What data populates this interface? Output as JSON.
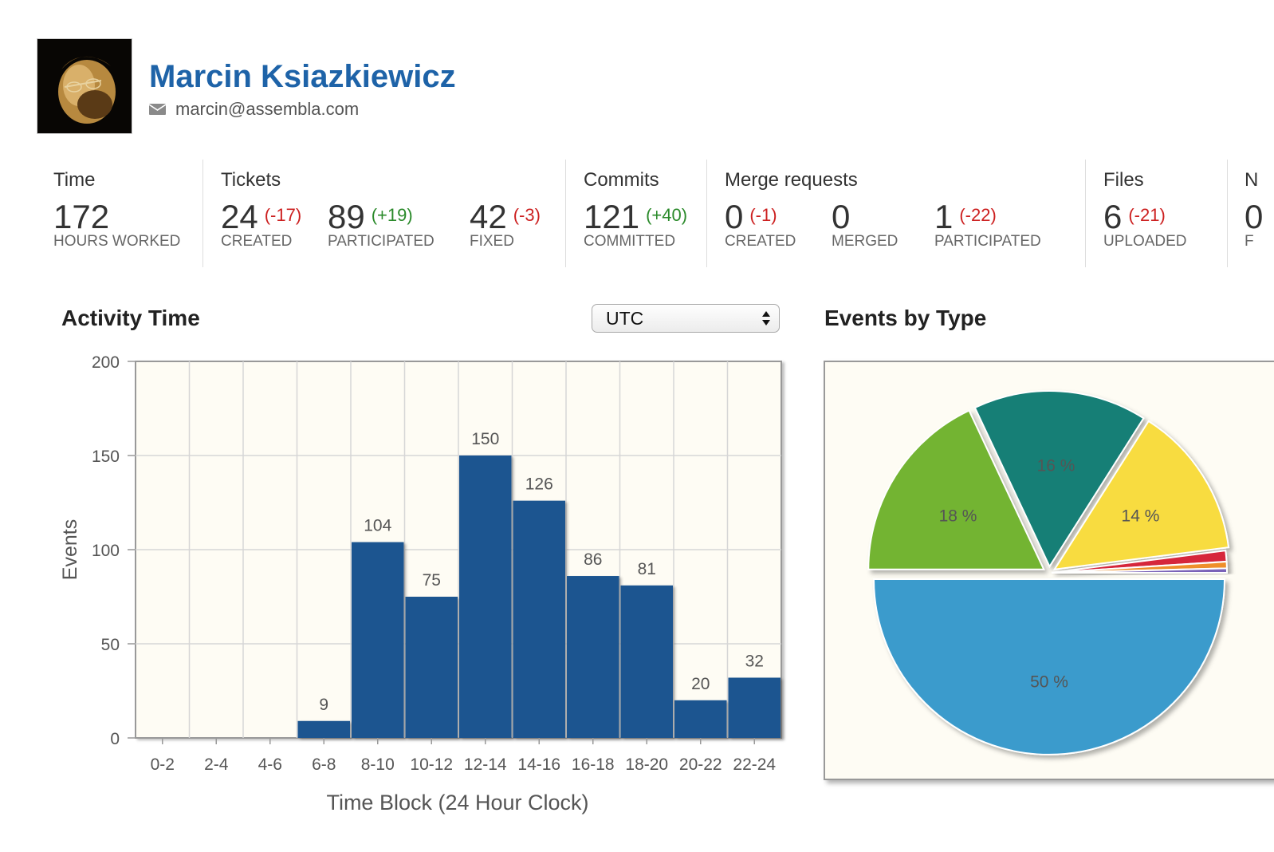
{
  "profile": {
    "name": "Marcin Ksiazkiewicz",
    "email": "marcin@assembla.com"
  },
  "stats": {
    "time": {
      "title": "Time",
      "value": "172",
      "label": "HOURS WORKED"
    },
    "tickets": {
      "title": "Tickets",
      "items": [
        {
          "value": "24",
          "delta": "(-17)",
          "label": "CREATED"
        },
        {
          "value": "89",
          "delta": "(+19)",
          "label": "PARTICIPATED"
        },
        {
          "value": "42",
          "delta": "(-3)",
          "label": "FIXED"
        }
      ]
    },
    "commits": {
      "title": "Commits",
      "value": "121",
      "delta": "(+40)",
      "label": "COMMITTED"
    },
    "merge_requests": {
      "title": "Merge requests",
      "items": [
        {
          "value": "0",
          "delta": "(-1)",
          "label": "CREATED"
        },
        {
          "value": "0",
          "delta": "",
          "label": "MERGED"
        },
        {
          "value": "1",
          "delta": "(-22)",
          "label": "PARTICIPATED"
        }
      ]
    },
    "files": {
      "title": "Files",
      "value": "6",
      "delta": "(-21)",
      "label": "UPLOADED"
    },
    "cut_off": {
      "title": "N",
      "value": "0",
      "label": "F"
    }
  },
  "activity": {
    "title": "Activity Time",
    "timezone": "UTC"
  },
  "events_title": "Events by Type",
  "colors": {
    "name": "#1e63a8",
    "bar": "#1a5490",
    "positive": "#2a8a2a",
    "negative": "#cc1f1f"
  },
  "chart_data": [
    {
      "type": "bar",
      "categories": [
        "0-2",
        "2-4",
        "4-6",
        "6-8",
        "8-10",
        "10-12",
        "12-14",
        "14-16",
        "16-18",
        "18-20",
        "20-22",
        "22-24"
      ],
      "values": [
        0,
        0,
        0,
        9,
        104,
        75,
        150,
        126,
        86,
        81,
        20,
        32
      ],
      "data_labels": [
        "",
        "",
        "",
        "9",
        "104",
        "75",
        "150",
        "126",
        "86",
        "81",
        "20",
        "32"
      ],
      "title": "",
      "xlabel": "Time Block (24 Hour Clock)",
      "ylabel": "Events",
      "ylim": [
        0,
        200
      ],
      "yticks": [
        "0",
        "50",
        "100",
        "150",
        "200"
      ],
      "grid": true,
      "color": "#1a5490"
    },
    {
      "type": "pie",
      "slices": [
        {
          "value": 50,
          "label": "50 %",
          "color": "#3b9bcc"
        },
        {
          "value": 18,
          "label": "18 %",
          "color": "#73b431"
        },
        {
          "value": 16,
          "label": "16 %",
          "color": "#137f76"
        },
        {
          "value": 14,
          "label": "14 %",
          "color": "#f8dc3f"
        },
        {
          "value": 1,
          "label": "",
          "color": "#d6283b"
        },
        {
          "value": 0.6,
          "label": "",
          "color": "#ef8f2b"
        },
        {
          "value": 0.4,
          "label": "",
          "color": "#7a62b8"
        }
      ]
    }
  ]
}
